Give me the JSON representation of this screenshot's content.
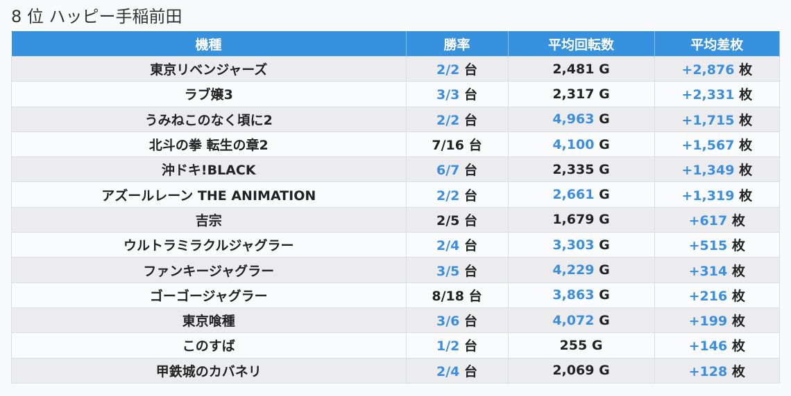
{
  "title": "8 位 ハッピー手稲前田",
  "headers": [
    "機種",
    "勝率",
    "平均回転数",
    "平均差枚"
  ],
  "units": {
    "rate": "台",
    "games": "G",
    "diff": "枚"
  },
  "colors": {
    "header": "#3691de",
    "highlight": "#3a8ee0"
  },
  "rows": [
    {
      "name": "東京リベンジャーズ",
      "rate": "2/2",
      "rate_hi": true,
      "games": "2,481",
      "games_hi": false,
      "diff": "+2,876"
    },
    {
      "name": "ラブ嬢3",
      "rate": "3/3",
      "rate_hi": true,
      "games": "2,317",
      "games_hi": false,
      "diff": "+2,331"
    },
    {
      "name": "うみねこのなく頃に2",
      "rate": "2/2",
      "rate_hi": true,
      "games": "4,963",
      "games_hi": true,
      "diff": "+1,715"
    },
    {
      "name": "北斗の拳 転生の章2",
      "rate": "7/16",
      "rate_hi": false,
      "games": "4,100",
      "games_hi": true,
      "diff": "+1,567"
    },
    {
      "name": "沖ドキ!BLACK",
      "rate": "6/7",
      "rate_hi": true,
      "games": "2,335",
      "games_hi": false,
      "diff": "+1,349"
    },
    {
      "name": "アズールレーン THE ANIMATION",
      "rate": "2/2",
      "rate_hi": true,
      "games": "2,661",
      "games_hi": true,
      "diff": "+1,319"
    },
    {
      "name": "吉宗",
      "rate": "2/5",
      "rate_hi": false,
      "games": "1,679",
      "games_hi": false,
      "diff": "+617"
    },
    {
      "name": "ウルトラミラクルジャグラー",
      "rate": "2/4",
      "rate_hi": true,
      "games": "3,303",
      "games_hi": true,
      "diff": "+515"
    },
    {
      "name": "ファンキージャグラー",
      "rate": "3/5",
      "rate_hi": true,
      "games": "4,229",
      "games_hi": true,
      "diff": "+314"
    },
    {
      "name": "ゴーゴージャグラー",
      "rate": "8/18",
      "rate_hi": false,
      "games": "3,863",
      "games_hi": true,
      "diff": "+216"
    },
    {
      "name": "東京喰種",
      "rate": "3/6",
      "rate_hi": true,
      "games": "4,072",
      "games_hi": true,
      "diff": "+199"
    },
    {
      "name": "このすば",
      "rate": "1/2",
      "rate_hi": true,
      "games": "255",
      "games_hi": false,
      "diff": "+146"
    },
    {
      "name": "甲鉄城のカバネリ",
      "rate": "2/4",
      "rate_hi": true,
      "games": "2,069",
      "games_hi": false,
      "diff": "+128"
    }
  ]
}
